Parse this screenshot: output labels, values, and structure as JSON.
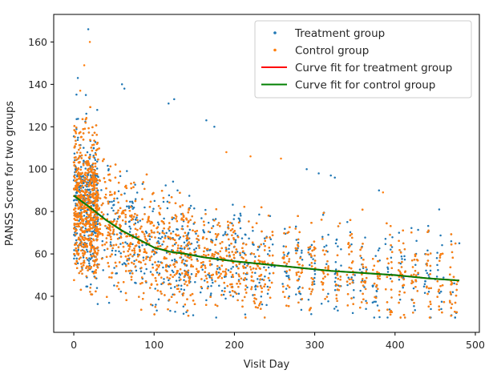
{
  "chart_data": {
    "type": "scatter",
    "xlabel": "Visit Day",
    "ylabel": "PANSS Score for two groups",
    "xlim": [
      -25,
      505
    ],
    "ylim": [
      23,
      173
    ],
    "xticks": [
      0,
      100,
      200,
      300,
      400,
      500
    ],
    "yticks": [
      40,
      60,
      80,
      100,
      120,
      140,
      160
    ],
    "grid": false,
    "legend_position": "top-right",
    "series": [
      {
        "name": "Treatment group",
        "kind": "scatter",
        "color": "#1f77b4",
        "sample_points": [
          [
            18,
            166
          ],
          [
            60,
            140
          ],
          [
            63,
            138
          ],
          [
            5,
            143
          ],
          [
            15,
            135
          ],
          [
            125,
            133
          ],
          [
            118,
            131
          ],
          [
            165,
            123
          ],
          [
            175,
            120
          ],
          [
            455,
            81
          ],
          [
            305,
            98
          ],
          [
            320,
            97
          ],
          [
            325,
            96
          ],
          [
            290,
            100
          ],
          [
            380,
            90
          ],
          [
            405,
            70
          ],
          [
            470,
            66
          ],
          [
            480,
            65
          ],
          [
            2,
            100
          ],
          [
            10,
            95
          ],
          [
            30,
            90
          ],
          [
            50,
            85
          ],
          [
            80,
            75
          ],
          [
            110,
            68
          ],
          [
            150,
            62
          ],
          [
            200,
            58
          ],
          [
            250,
            54
          ],
          [
            300,
            52
          ],
          [
            350,
            50
          ],
          [
            400,
            50
          ],
          [
            450,
            48
          ]
        ]
      },
      {
        "name": "Control group",
        "kind": "scatter",
        "color": "#ff7f0e",
        "sample_points": [
          [
            20,
            160
          ],
          [
            13,
            149
          ],
          [
            8,
            137
          ],
          [
            190,
            108
          ],
          [
            220,
            106
          ],
          [
            258,
            105
          ],
          [
            385,
            89
          ],
          [
            8,
            110
          ],
          [
            20,
            100
          ],
          [
            40,
            88
          ],
          [
            70,
            78
          ],
          [
            100,
            70
          ],
          [
            130,
            64
          ],
          [
            180,
            60
          ],
          [
            230,
            57
          ],
          [
            280,
            55
          ],
          [
            330,
            52
          ],
          [
            380,
            51
          ],
          [
            430,
            49
          ],
          [
            478,
            47
          ]
        ]
      },
      {
        "name": "Curve fit for treatment group",
        "kind": "line",
        "color": "#ff0000",
        "x": [
          0,
          20,
          40,
          60,
          80,
          100,
          120,
          140,
          160,
          180,
          200,
          240,
          280,
          320,
          360,
          400,
          440,
          480
        ],
        "y": [
          87.5,
          82,
          76,
          71,
          67,
          63,
          61,
          60,
          58.5,
          57.5,
          56.5,
          55,
          53.5,
          52,
          51,
          50,
          48.5,
          47.5
        ]
      },
      {
        "name": "Curve fit for control group",
        "kind": "line",
        "color": "#008000",
        "x": [
          0,
          20,
          40,
          60,
          80,
          100,
          120,
          140,
          160,
          180,
          200,
          240,
          280,
          320,
          360,
          400,
          440,
          480
        ],
        "y": [
          87.5,
          82,
          76,
          71,
          67,
          63,
          61,
          60,
          58.5,
          57.5,
          56.5,
          55,
          53.5,
          52,
          51,
          50,
          48.5,
          47.5
        ]
      }
    ]
  }
}
